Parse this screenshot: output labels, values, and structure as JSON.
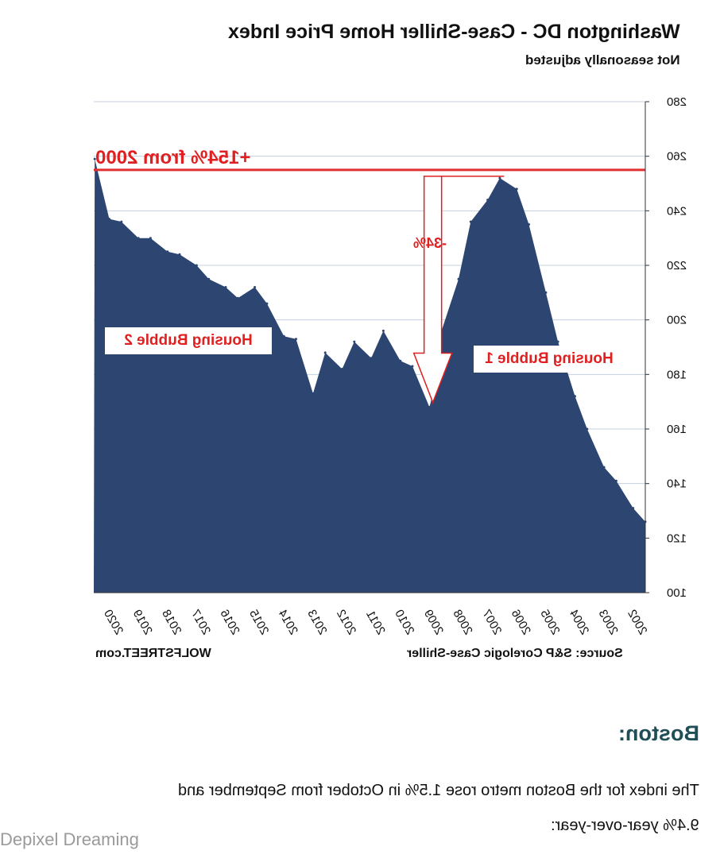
{
  "chart": {
    "title": "Washington DC - Case-Shiller Home Price Index",
    "subtitle": "Not seasonally adjusted",
    "annotations": {
      "peak_line": "+154% from 2000",
      "drop": "-34%",
      "bubble1": "Housing Bubble 1",
      "bubble2": "Housing Bubble 2"
    },
    "credit": "WOLFSTREET.com",
    "source": "Source: S&P Corelogic Case-Shiller"
  },
  "chart_data": {
    "type": "area",
    "title": "Washington DC - Case-Shiller Home Price Index",
    "subtitle": "Not seasonally adjusted",
    "mirrored": true,
    "ylim": [
      100,
      280
    ],
    "yticks": [
      100,
      120,
      140,
      160,
      180,
      200,
      220,
      240,
      260,
      280
    ],
    "xticks": [
      "2020",
      "2019",
      "2018",
      "2017",
      "2016",
      "2015",
      "2014",
      "2013",
      "2012",
      "2011",
      "2010",
      "2009",
      "2008",
      "2007",
      "2006",
      "2005",
      "2004",
      "2003",
      "2002"
    ],
    "x": [
      "2002-01",
      "2002-06",
      "2003-01",
      "2003-06",
      "2004-01",
      "2004-06",
      "2005-01",
      "2005-06",
      "2006-01",
      "2006-06",
      "2007-01",
      "2007-06",
      "2008-01",
      "2008-06",
      "2009-01",
      "2009-04",
      "2009-06",
      "2010-01",
      "2010-06",
      "2011-01",
      "2011-06",
      "2012-01",
      "2012-06",
      "2013-01",
      "2013-06",
      "2014-01",
      "2014-06",
      "2015-01",
      "2015-06",
      "2016-01",
      "2016-06",
      "2017-01",
      "2017-06",
      "2018-01",
      "2018-06",
      "2019-01",
      "2019-06",
      "2020-01",
      "2020-06",
      "2020-12"
    ],
    "y": [
      126,
      131,
      141,
      146,
      160,
      172,
      192,
      210,
      235,
      248,
      252,
      244,
      236,
      215,
      196,
      175,
      168,
      183,
      185,
      196,
      186,
      192,
      182,
      188,
      173,
      193,
      194,
      206,
      212,
      208,
      212,
      215,
      220,
      224,
      225,
      230,
      230,
      236,
      237,
      259
    ],
    "grid": true,
    "colors": {
      "area": "#2c4571",
      "reference_line": "#e03030",
      "annotation": "#e02020"
    },
    "reference_line": 255
  },
  "page": {
    "section_heading": "Boston:",
    "paragraph_line1": "The index for the Boston metro rose 1.5% in October from September and",
    "paragraph_line2": "9.4% year-over-year:",
    "watermark": "Depixel Dreaming"
  }
}
